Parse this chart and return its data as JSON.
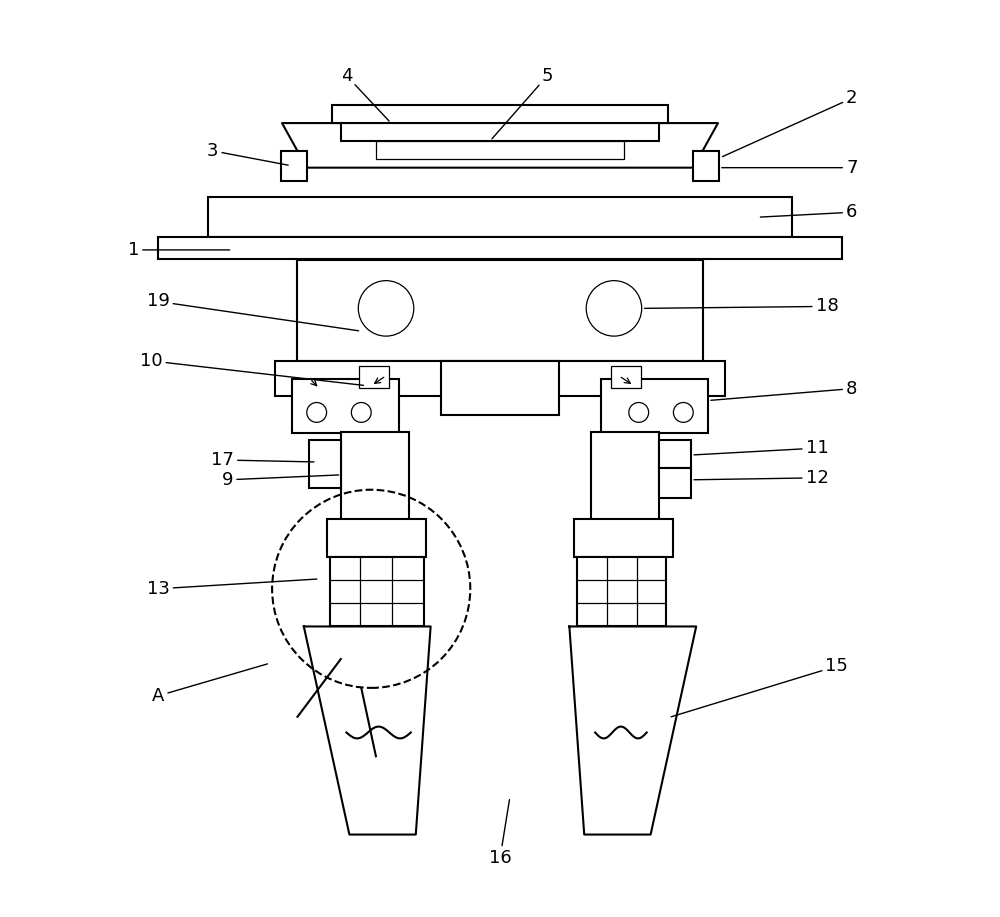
{
  "bg_color": "#ffffff",
  "lc": "#000000",
  "lw": 1.5,
  "tlw": 0.9,
  "fs": 13,
  "figw": 10.0,
  "figh": 9.17
}
